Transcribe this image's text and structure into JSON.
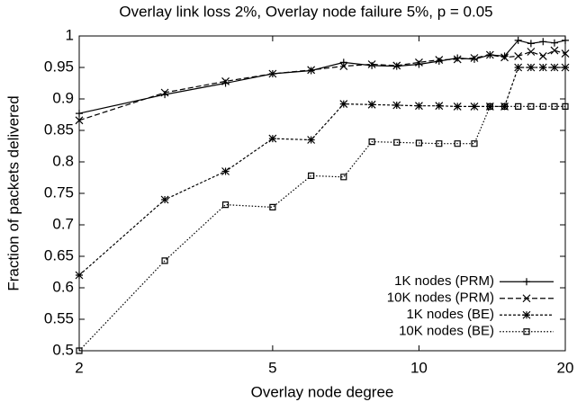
{
  "chart_data": {
    "type": "line",
    "title": "Overlay link loss 2%, Overlay node failure 5%, p = 0.05",
    "x_label": "Overlay node degree",
    "y_label": "Fraction of packets delivered",
    "x": [
      2,
      3,
      4,
      5,
      6,
      7,
      8,
      9,
      10,
      11,
      12,
      13,
      14,
      15,
      16,
      17,
      18,
      19,
      20
    ],
    "x_scale": "log",
    "xlim": [
      2,
      20
    ],
    "xticks": [
      2,
      5,
      10,
      20
    ],
    "ylim": [
      0.5,
      1
    ],
    "yticks": [
      0.5,
      0.55,
      0.6,
      0.65,
      0.7,
      0.75,
      0.8,
      0.85,
      0.9,
      0.95,
      1
    ],
    "legend": "lower right",
    "series": [
      {
        "name": "1K nodes (PRM)",
        "color": "#000000",
        "dash": "solid",
        "marker": "plus",
        "values": [
          0.877,
          0.907,
          0.925,
          0.94,
          0.945,
          0.958,
          0.953,
          0.952,
          0.955,
          0.96,
          0.965,
          0.963,
          0.97,
          0.968,
          0.993,
          0.988,
          0.991,
          0.989,
          0.993
        ]
      },
      {
        "name": "10K nodes (PRM)",
        "color": "#000000",
        "dash": "dashed",
        "marker": "cross",
        "values": [
          0.866,
          0.91,
          0.928,
          0.94,
          0.946,
          0.952,
          0.955,
          0.953,
          0.958,
          0.962,
          0.963,
          0.965,
          0.97,
          0.966,
          0.968,
          0.975,
          0.968,
          0.977,
          0.972
        ]
      },
      {
        "name": "1K nodes (BE)",
        "color": "#000000",
        "dash": "dotted-dense",
        "marker": "star",
        "values": [
          0.62,
          0.74,
          0.785,
          0.837,
          0.835,
          0.892,
          0.891,
          0.89,
          0.889,
          0.889,
          0.888,
          0.888,
          0.888,
          0.888,
          0.95,
          0.95,
          0.95,
          0.95,
          0.95
        ]
      },
      {
        "name": "10K nodes (BE)",
        "color": "#000000",
        "dash": "dotted",
        "marker": "square",
        "values": [
          0.5,
          0.643,
          0.732,
          0.728,
          0.778,
          0.776,
          0.832,
          0.831,
          0.83,
          0.829,
          0.829,
          0.829,
          0.888,
          0.888,
          0.888,
          0.888,
          0.888,
          0.888,
          0.888
        ]
      }
    ]
  }
}
